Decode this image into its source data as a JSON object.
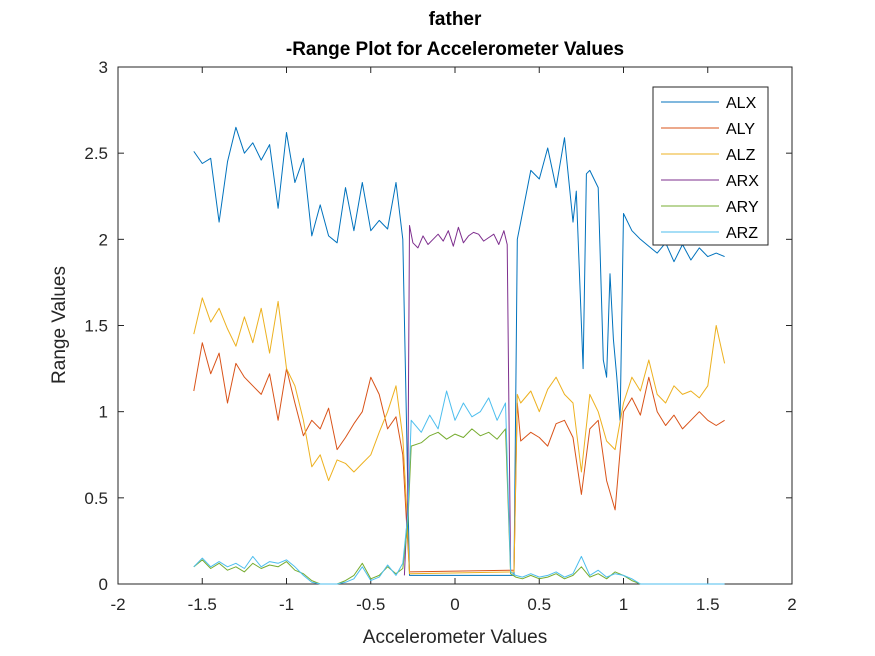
{
  "chart_data": {
    "type": "line",
    "title": "father",
    "subtitle": "-Range Plot for Accelerometer Values",
    "xlabel": "Accelerometer Values",
    "ylabel": "Range Values",
    "xlim": [
      -2,
      2
    ],
    "ylim": [
      0,
      3
    ],
    "xticks": [
      "-2",
      "-1.5",
      "-1",
      "-0.5",
      "0",
      "0.5",
      "1",
      "1.5",
      "2"
    ],
    "yticks": [
      "0",
      "0.5",
      "1",
      "1.5",
      "2",
      "2.5",
      "3"
    ],
    "grid": false,
    "legend_position": "top-right",
    "series": [
      {
        "name": "ALX",
        "color": "#0072BD",
        "x": [
          -1.55,
          -1.5,
          -1.45,
          -1.4,
          -1.35,
          -1.3,
          -1.25,
          -1.2,
          -1.15,
          -1.1,
          -1.05,
          -1.0,
          -0.95,
          -0.9,
          -0.85,
          -0.8,
          -0.75,
          -0.7,
          -0.65,
          -0.6,
          -0.55,
          -0.5,
          -0.45,
          -0.4,
          -0.35,
          -0.31,
          -0.29,
          -0.27,
          0.35,
          0.37,
          0.39,
          0.45,
          0.5,
          0.55,
          0.6,
          0.65,
          0.7,
          0.72,
          0.76,
          0.78,
          0.8,
          0.85,
          0.88,
          0.9,
          0.92,
          0.94,
          0.96,
          0.98,
          1.0,
          1.05,
          1.1,
          1.15,
          1.2,
          1.25,
          1.3,
          1.35,
          1.4,
          1.45,
          1.5,
          1.55,
          1.6
        ],
        "y": [
          2.51,
          2.44,
          2.47,
          2.1,
          2.45,
          2.65,
          2.5,
          2.56,
          2.46,
          2.55,
          2.18,
          2.62,
          2.33,
          2.47,
          2.02,
          2.2,
          2.02,
          1.98,
          2.3,
          2.05,
          2.33,
          2.05,
          2.11,
          2.06,
          2.33,
          2.0,
          1.05,
          0.05,
          0.05,
          2.0,
          2.1,
          2.4,
          2.35,
          2.53,
          2.3,
          2.59,
          2.1,
          2.28,
          1.25,
          2.38,
          2.4,
          2.3,
          1.3,
          1.2,
          1.8,
          1.42,
          1.2,
          0.95,
          2.15,
          2.05,
          2.0,
          1.96,
          1.92,
          1.98,
          1.87,
          1.97,
          1.88,
          1.95,
          1.9,
          1.92,
          1.9
        ]
      },
      {
        "name": "ALY",
        "color": "#D95319",
        "x": [
          -1.55,
          -1.5,
          -1.45,
          -1.4,
          -1.35,
          -1.3,
          -1.25,
          -1.2,
          -1.15,
          -1.1,
          -1.05,
          -1.0,
          -0.95,
          -0.9,
          -0.85,
          -0.8,
          -0.75,
          -0.7,
          -0.65,
          -0.6,
          -0.55,
          -0.5,
          -0.45,
          -0.4,
          -0.35,
          -0.31,
          -0.29,
          -0.27,
          0.35,
          0.37,
          0.39,
          0.45,
          0.5,
          0.55,
          0.6,
          0.65,
          0.7,
          0.75,
          0.8,
          0.85,
          0.9,
          0.95,
          1.0,
          1.05,
          1.1,
          1.15,
          1.2,
          1.25,
          1.3,
          1.35,
          1.4,
          1.45,
          1.5,
          1.55,
          1.6
        ],
        "y": [
          1.12,
          1.4,
          1.22,
          1.34,
          1.05,
          1.28,
          1.2,
          1.15,
          1.1,
          1.22,
          0.95,
          1.25,
          1.05,
          0.86,
          0.95,
          0.9,
          1.02,
          0.78,
          0.85,
          0.93,
          1.0,
          1.2,
          1.1,
          0.9,
          0.97,
          0.75,
          0.4,
          0.07,
          0.08,
          1.05,
          0.83,
          0.88,
          0.85,
          0.8,
          0.93,
          0.95,
          0.85,
          0.52,
          0.9,
          0.95,
          0.6,
          0.43,
          1.0,
          1.08,
          0.98,
          1.2,
          1.0,
          0.92,
          0.98,
          0.9,
          0.95,
          1.0,
          0.95,
          0.92,
          0.95
        ]
      },
      {
        "name": "ALZ",
        "color": "#EDB120",
        "x": [
          -1.55,
          -1.5,
          -1.45,
          -1.4,
          -1.35,
          -1.3,
          -1.25,
          -1.2,
          -1.15,
          -1.1,
          -1.05,
          -1.0,
          -0.95,
          -0.9,
          -0.85,
          -0.8,
          -0.75,
          -0.7,
          -0.65,
          -0.6,
          -0.55,
          -0.5,
          -0.45,
          -0.4,
          -0.35,
          -0.31,
          -0.29,
          -0.27,
          0.35,
          0.37,
          0.39,
          0.45,
          0.5,
          0.55,
          0.6,
          0.65,
          0.7,
          0.75,
          0.8,
          0.85,
          0.9,
          0.95,
          1.0,
          1.05,
          1.1,
          1.15,
          1.2,
          1.25,
          1.3,
          1.35,
          1.4,
          1.45,
          1.5,
          1.55,
          1.6
        ],
        "y": [
          1.45,
          1.66,
          1.52,
          1.6,
          1.48,
          1.38,
          1.55,
          1.4,
          1.6,
          1.34,
          1.64,
          1.25,
          1.15,
          0.95,
          0.68,
          0.75,
          0.6,
          0.72,
          0.7,
          0.65,
          0.7,
          0.75,
          0.88,
          1.0,
          1.15,
          0.85,
          0.5,
          0.06,
          0.07,
          1.1,
          1.05,
          1.12,
          1.0,
          1.13,
          1.2,
          1.1,
          1.05,
          0.65,
          1.1,
          1.0,
          0.83,
          0.78,
          1.05,
          1.2,
          1.12,
          1.3,
          1.1,
          1.05,
          1.15,
          1.1,
          1.12,
          1.08,
          1.15,
          1.5,
          1.28
        ]
      },
      {
        "name": "ARX",
        "color": "#7E2F8E",
        "x": [
          -0.3,
          -0.28,
          -0.27,
          -0.25,
          -0.22,
          -0.19,
          -0.16,
          -0.13,
          -0.1,
          -0.07,
          -0.04,
          -0.01,
          0.02,
          0.05,
          0.08,
          0.11,
          0.14,
          0.17,
          0.2,
          0.23,
          0.26,
          0.29,
          0.31,
          0.33
        ],
        "y": [
          0.05,
          0.5,
          2.08,
          1.98,
          1.95,
          2.02,
          1.97,
          2.0,
          2.03,
          1.99,
          2.05,
          1.96,
          2.07,
          1.98,
          2.02,
          2.04,
          2.03,
          1.99,
          2.01,
          2.03,
          1.97,
          2.05,
          1.97,
          0.08
        ]
      },
      {
        "name": "ARY",
        "color": "#77AC30",
        "x": [
          -1.55,
          -1.5,
          -1.45,
          -1.4,
          -1.35,
          -1.3,
          -1.25,
          -1.2,
          -1.15,
          -1.1,
          -1.05,
          -1.0,
          -0.95,
          -0.9,
          -0.85,
          -0.8,
          -0.75,
          -0.7,
          -0.65,
          -0.6,
          -0.55,
          -0.5,
          -0.45,
          -0.4,
          -0.35,
          -0.31,
          -0.28,
          -0.26,
          -0.2,
          -0.15,
          -0.1,
          -0.05,
          0.0,
          0.05,
          0.1,
          0.15,
          0.2,
          0.25,
          0.3,
          0.33,
          0.36,
          0.4,
          0.45,
          0.5,
          0.55,
          0.6,
          0.65,
          0.7,
          0.75,
          0.8,
          0.85,
          0.9,
          0.95,
          1.0,
          1.05,
          1.1
        ],
        "y": [
          0.1,
          0.14,
          0.09,
          0.12,
          0.08,
          0.1,
          0.07,
          0.12,
          0.09,
          0.11,
          0.1,
          0.13,
          0.08,
          0.06,
          0.02,
          0.0,
          0.0,
          0.0,
          0.02,
          0.05,
          0.12,
          0.03,
          0.05,
          0.1,
          0.06,
          0.09,
          0.35,
          0.8,
          0.82,
          0.86,
          0.88,
          0.84,
          0.87,
          0.85,
          0.9,
          0.86,
          0.88,
          0.84,
          0.9,
          0.06,
          0.04,
          0.03,
          0.05,
          0.03,
          0.04,
          0.06,
          0.03,
          0.05,
          0.1,
          0.04,
          0.06,
          0.03,
          0.07,
          0.05,
          0.02,
          0.0
        ]
      },
      {
        "name": "ARZ",
        "color": "#4DBEEE",
        "x": [
          -1.55,
          -1.5,
          -1.45,
          -1.4,
          -1.35,
          -1.3,
          -1.25,
          -1.2,
          -1.15,
          -1.1,
          -1.05,
          -1.0,
          -0.95,
          -0.9,
          -0.85,
          -0.8,
          -0.75,
          -0.7,
          -0.65,
          -0.6,
          -0.55,
          -0.5,
          -0.45,
          -0.4,
          -0.35,
          -0.31,
          -0.28,
          -0.26,
          -0.2,
          -0.15,
          -0.1,
          -0.05,
          0.0,
          0.05,
          0.1,
          0.15,
          0.2,
          0.25,
          0.3,
          0.33,
          0.36,
          0.4,
          0.45,
          0.5,
          0.55,
          0.6,
          0.65,
          0.7,
          0.75,
          0.8,
          0.85,
          0.9,
          0.95,
          1.0,
          1.05,
          1.1,
          1.2,
          1.3,
          1.4,
          1.5,
          1.6
        ],
        "y": [
          0.1,
          0.15,
          0.1,
          0.13,
          0.1,
          0.12,
          0.09,
          0.16,
          0.1,
          0.13,
          0.12,
          0.14,
          0.1,
          0.05,
          0.01,
          0.0,
          0.0,
          0.0,
          0.01,
          0.03,
          0.1,
          0.02,
          0.04,
          0.11,
          0.05,
          0.12,
          0.4,
          0.95,
          0.88,
          0.98,
          0.9,
          1.12,
          0.95,
          1.05,
          0.97,
          1.0,
          1.08,
          0.95,
          1.05,
          0.07,
          0.05,
          0.04,
          0.06,
          0.04,
          0.05,
          0.07,
          0.04,
          0.06,
          0.16,
          0.05,
          0.08,
          0.04,
          0.06,
          0.05,
          0.03,
          0.0,
          0.0,
          0.0,
          0.0,
          0.0,
          0.0
        ]
      }
    ]
  }
}
